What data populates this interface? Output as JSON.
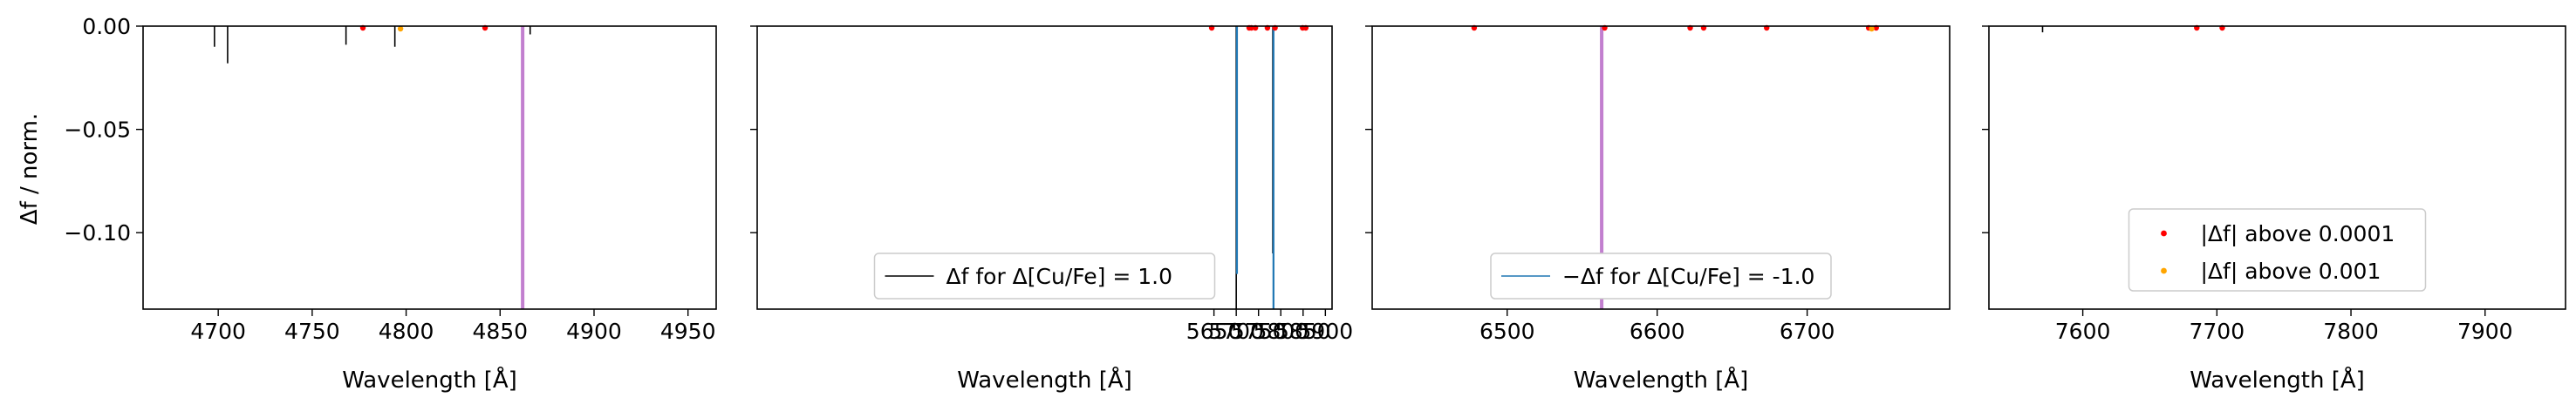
{
  "figure": {
    "ylabel": "Δf / norm.",
    "xlabel_text": "Wavelength [Å]",
    "colors": {
      "diff_positive": "#000000",
      "diff_negative": "#1f77b4",
      "marker_small": "#ff0000",
      "marker_large": "#ffa500",
      "highlight_line": "#c27fcf"
    }
  },
  "chart_data": [
    {
      "type": "line",
      "xlabel": "Wavelength [Å]",
      "ylabel": "Δf / norm.",
      "xlim": [
        4660,
        4965
      ],
      "ylim": [
        -0.137,
        0.0
      ],
      "xticks": [
        4700,
        4750,
        4800,
        4850,
        4900,
        4950
      ],
      "yticks": [
        0.0,
        -0.05,
        -0.1
      ],
      "ytick_labels": [
        "0.00",
        "−0.05",
        "−0.10"
      ],
      "highlight_x": [
        4862
      ],
      "lines_positive": [
        [
          4698,
          -0.01
        ],
        [
          4705,
          -0.018
        ],
        [
          4768,
          -0.009
        ],
        [
          4794,
          -0.01
        ],
        [
          4866,
          -0.004
        ]
      ],
      "lines_negative": [],
      "markers_small": [
        4777,
        4842
      ],
      "markers_large": [
        4797
      ]
    },
    {
      "type": "line",
      "xlabel": "Wavelength [Å]",
      "ylabel": "",
      "xlim": [
        4625,
        5915
      ],
      "ylim": [
        -0.137,
        0.0
      ],
      "xticks": [
        5650,
        5700,
        5750,
        5800,
        5850,
        5900
      ],
      "yticks": [
        0.0,
        -0.05,
        -0.1
      ],
      "ytick_labels": [
        "",
        "",
        ""
      ],
      "highlight_x": [],
      "lines_positive": [
        [
          5700,
          -0.137
        ],
        [
          5782,
          -0.11
        ]
      ],
      "lines_negative": [
        [
          5700,
          -0.12
        ],
        [
          5782,
          -0.137
        ]
      ],
      "markers_small": [
        5645,
        5729,
        5734,
        5743,
        5770,
        5787,
        5849,
        5856
      ],
      "markers_large": [],
      "legend": {
        "position": "lower center",
        "label": "Δf for Δ[Cu/Fe] = 1.0"
      }
    },
    {
      "type": "line",
      "xlabel": "Wavelength [Å]",
      "ylabel": "",
      "xlim": [
        6410,
        6795
      ],
      "ylim": [
        -0.137,
        0.0
      ],
      "xticks": [
        6500,
        6600,
        6700
      ],
      "yticks": [
        0.0,
        -0.05,
        -0.1
      ],
      "ytick_labels": [
        "",
        "",
        ""
      ],
      "highlight_x": [
        6563
      ],
      "lines_positive": [],
      "lines_negative": [],
      "markers_small": [
        6478,
        6565,
        6622,
        6631,
        6673,
        6741,
        6746
      ],
      "markers_large": [
        6743
      ],
      "legend": {
        "position": "lower center",
        "label": "−Δf for Δ[Cu/Fe] = -1.0"
      }
    },
    {
      "type": "line",
      "xlabel": "Wavelength [Å]",
      "ylabel": "",
      "xlim": [
        7530,
        7960
      ],
      "ylim": [
        -0.137,
        0.0
      ],
      "xticks": [
        7600,
        7700,
        7800,
        7900
      ],
      "yticks": [
        0.0,
        -0.05,
        -0.1
      ],
      "ytick_labels": [
        "",
        "",
        ""
      ],
      "highlight_x": [],
      "lines_positive": [
        [
          7570,
          -0.003
        ]
      ],
      "lines_negative": [],
      "markers_small": [
        7685,
        7704
      ],
      "markers_large": [],
      "legend": {
        "position": "lower center",
        "entries": [
          "|Δf| above 0.0001",
          "|Δf| above 0.001"
        ]
      }
    }
  ]
}
